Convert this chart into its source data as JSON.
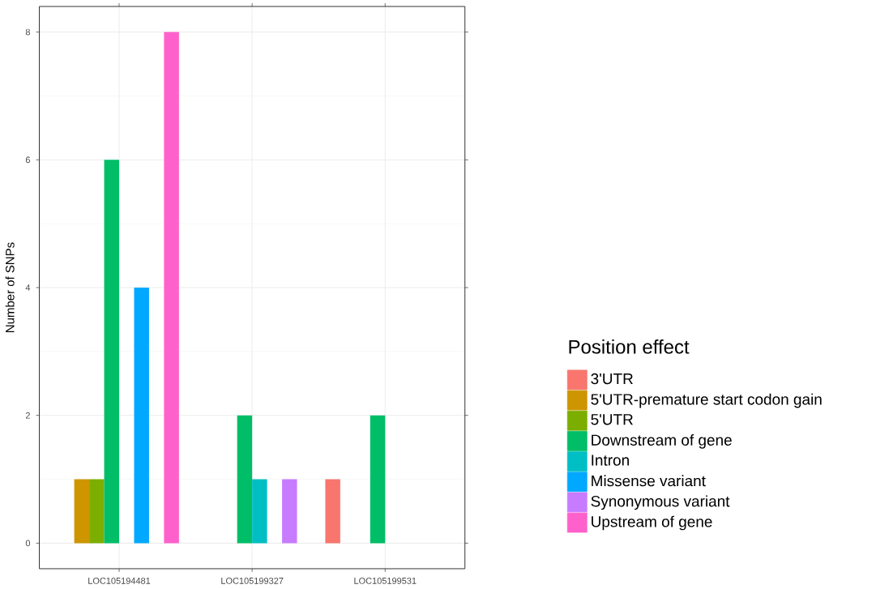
{
  "chart_data": {
    "type": "bar",
    "ylabel": "Number of SNPs",
    "legend_title": "Position effect",
    "categories": [
      "LOC105194481",
      "LOC105199327",
      "LOC105199531"
    ],
    "series": [
      {
        "name": "3'UTR",
        "color": "#f8766d",
        "values": [
          null,
          null,
          1
        ]
      },
      {
        "name": "5'UTR-premature start codon gain",
        "color": "#cd9600",
        "values": [
          1,
          null,
          null
        ]
      },
      {
        "name": "5'UTR",
        "color": "#7cae00",
        "values": [
          1,
          null,
          null
        ]
      },
      {
        "name": "Downstream of gene",
        "color": "#00be67",
        "values": [
          6,
          2,
          2
        ]
      },
      {
        "name": "Intron",
        "color": "#00bfc4",
        "values": [
          null,
          1,
          null
        ]
      },
      {
        "name": "Missense variant",
        "color": "#00a9ff",
        "values": [
          4,
          null,
          null
        ]
      },
      {
        "name": "Synonymous variant",
        "color": "#c77cff",
        "values": [
          null,
          1,
          null
        ]
      },
      {
        "name": "Upstream of gene",
        "color": "#ff61cc",
        "values": [
          8,
          null,
          null
        ]
      }
    ],
    "ylim": [
      -0.4,
      8.4
    ],
    "yticks": [
      0,
      2,
      4,
      6,
      8
    ],
    "grid": true,
    "legend": "right"
  }
}
